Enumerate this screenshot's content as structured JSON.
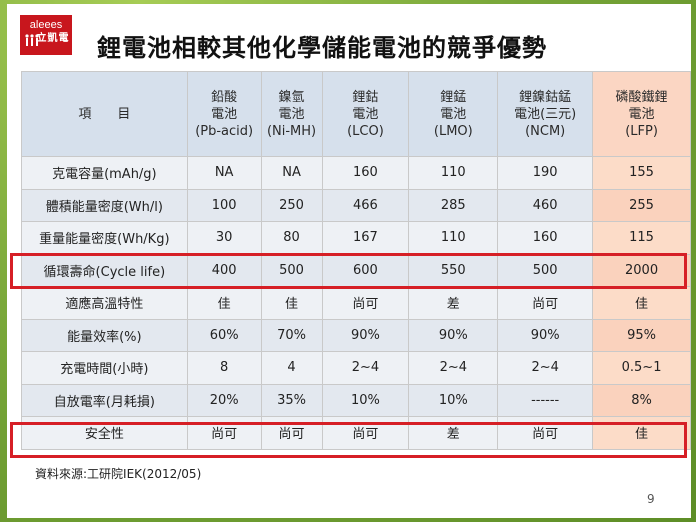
{
  "logo": {
    "brand": "aleees",
    "name": "立凱電"
  },
  "title": "鋰電池相較其他化學儲能電池的競爭優勢",
  "table": {
    "header_item": "項　　目",
    "columns": [
      {
        "line1": "鉛酸",
        "line2": "電池",
        "line3": "(Pb-acid)"
      },
      {
        "line1": "鎳氫",
        "line2": "電池",
        "line3": "(Ni-MH)"
      },
      {
        "line1": "鋰鈷",
        "line2": "電池",
        "line3": "(LCO)"
      },
      {
        "line1": "鋰錳",
        "line2": "電池",
        "line3": "(LMO)"
      },
      {
        "line1": "鋰鎳鈷錳",
        "line2": "電池(三元)",
        "line3": "(NCM)"
      },
      {
        "line1": "磷酸鐵鋰",
        "line2": "電池",
        "line3": "(LFP)"
      }
    ],
    "rows": [
      {
        "item": "克電容量(mAh/g)",
        "cells": [
          "NA",
          "NA",
          "160",
          "110",
          "190",
          "155"
        ]
      },
      {
        "item": "體積能量密度(Wh/l)",
        "cells": [
          "100",
          "250",
          "466",
          "285",
          "460",
          "255"
        ]
      },
      {
        "item": "重量能量密度(Wh/Kg)",
        "cells": [
          "30",
          "80",
          "167",
          "110",
          "160",
          "115"
        ]
      },
      {
        "item": "循環壽命(Cycle life)",
        "cells": [
          "400",
          "500",
          "600",
          "550",
          "500",
          "2000"
        ]
      },
      {
        "item": "適應高溫特性",
        "cells": [
          "佳",
          "佳",
          "尚可",
          "差",
          "尚可",
          "佳"
        ]
      },
      {
        "item": "能量效率(%)",
        "cells": [
          "60%",
          "70%",
          "90%",
          "90%",
          "90%",
          "95%"
        ]
      },
      {
        "item": "充電時間(小時)",
        "cells": [
          "8",
          "4",
          "2~4",
          "2~4",
          "2~4",
          "0.5~1"
        ]
      },
      {
        "item": "自放電率(月耗損)",
        "cells": [
          "20%",
          "35%",
          "10%",
          "10%",
          "------",
          "8%"
        ]
      },
      {
        "item": "安全性",
        "cells": [
          "尚可",
          "尚可",
          "尚可",
          "差",
          "尚可",
          "佳"
        ]
      }
    ]
  },
  "source": "資料來源:工研院IEK(2012/05)",
  "page_number": "9",
  "colors": {
    "logo_red": "#c8161d",
    "highlight_red": "#d61f26",
    "header_blue": "#d6e0ec",
    "lfp_peach": "#fcdcc8",
    "slide_border_green": "#7aa83a"
  }
}
